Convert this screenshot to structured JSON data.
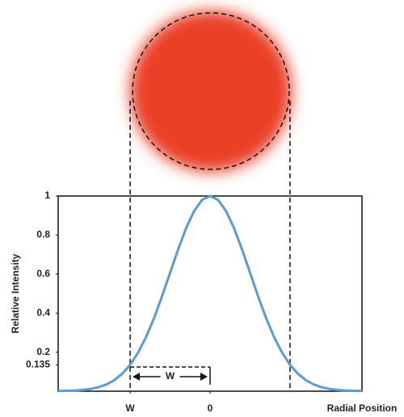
{
  "chart_data": {
    "type": "line",
    "x": [
      -1.9,
      -1.8,
      -1.7,
      -1.6,
      -1.5,
      -1.4,
      -1.3,
      -1.2,
      -1.1,
      -1.0,
      -0.9,
      -0.8,
      -0.7,
      -0.6,
      -0.5,
      -0.4,
      -0.3,
      -0.2,
      -0.1,
      0,
      0.1,
      0.2,
      0.3,
      0.4,
      0.5,
      0.6,
      0.7,
      0.8,
      0.9,
      1.0,
      1.1,
      1.2,
      1.3,
      1.4,
      1.5,
      1.6,
      1.7,
      1.8,
      1.9
    ],
    "values": [
      0.001,
      0.002,
      0.003,
      0.006,
      0.011,
      0.02,
      0.034,
      0.056,
      0.089,
      0.135,
      0.198,
      0.278,
      0.375,
      0.487,
      0.607,
      0.726,
      0.835,
      0.923,
      0.98,
      1,
      0.98,
      0.923,
      0.835,
      0.726,
      0.607,
      0.487,
      0.375,
      0.278,
      0.198,
      0.135,
      0.089,
      0.056,
      0.034,
      0.02,
      0.011,
      0.006,
      0.003,
      0.002,
      0.001
    ],
    "color": "#5b9bd5",
    "xlim": [
      -1.9,
      1.9
    ],
    "ylim": [
      0,
      1
    ],
    "xticks": [
      {
        "value": -1,
        "label": "W"
      },
      0
    ],
    "yticks": [
      {
        "value": 0.135,
        "label": "0.135"
      },
      0.2,
      0.4,
      0.6,
      0.8,
      1
    ],
    "reference_lines": [
      -1,
      1
    ],
    "y_label": "Relative Intensity",
    "x_label": "Radial Position",
    "annotation": "W"
  }
}
